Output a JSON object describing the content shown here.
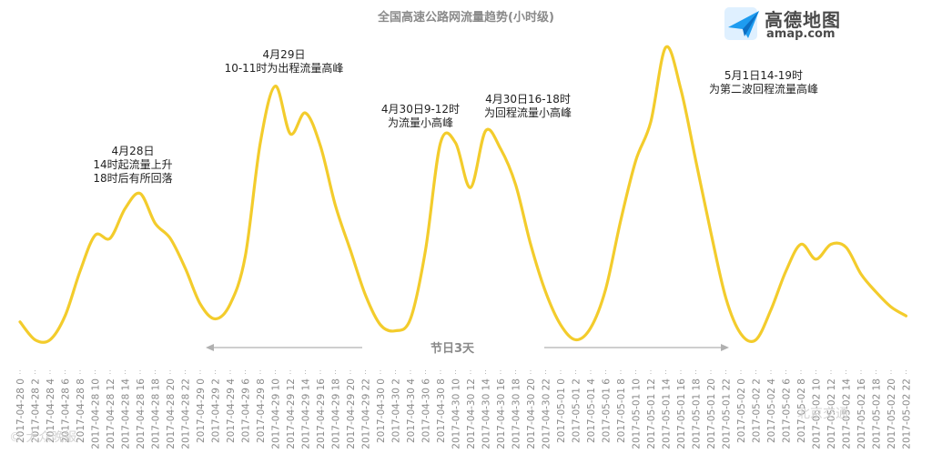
{
  "chart_data": {
    "type": "line",
    "title": "全国高速公路网流量趋势(小时级)",
    "color": "#f3cc2c",
    "x": [
      "2017-04-28 0",
      "2017-04-28 2",
      "2017-04-28 4",
      "2017-04-28 6",
      "2017-04-28 8",
      "2017-04-28 10",
      "2017-04-28 12",
      "2017-04-28 14",
      "2017-04-28 16",
      "2017-04-28 18",
      "2017-04-28 20",
      "2017-04-28 22",
      "2017-04-29 0",
      "2017-04-29 2",
      "2017-04-29 4",
      "2017-04-29 6",
      "2017-04-29 8",
      "2017-04-29 10",
      "2017-04-29 12",
      "2017-04-29 14",
      "2017-04-29 16",
      "2017-04-29 18",
      "2017-04-29 20",
      "2017-04-29 22",
      "2017-04-30 0",
      "2017-04-30 2",
      "2017-04-30 4",
      "2017-04-30 6",
      "2017-04-30 8",
      "2017-04-30 10",
      "2017-04-30 12",
      "2017-04-30 14",
      "2017-04-30 16",
      "2017-04-30 18",
      "2017-04-30 20",
      "2017-04-30 22",
      "2017-05-01 0",
      "2017-05-01 2",
      "2017-05-01 4",
      "2017-05-01 6",
      "2017-05-01 8",
      "2017-05-01 10",
      "2017-05-01 12",
      "2017-05-01 14",
      "2017-05-01 16",
      "2017-05-01 18",
      "2017-05-01 20",
      "2017-05-01 22",
      "2017-05-02 0",
      "2017-05-02 2",
      "2017-05-02 4",
      "2017-05-02 6",
      "2017-05-02 8",
      "2017-05-02 10",
      "2017-05-02 12",
      "2017-05-02 14",
      "2017-05-02 16",
      "2017-05-02 18",
      "2017-05-02 20",
      "2017-05-02 22"
    ],
    "series": [
      {
        "values": [
          0.08,
          0.02,
          0.02,
          0.1,
          0.25,
          0.37,
          0.36,
          0.46,
          0.51,
          0.41,
          0.36,
          0.26,
          0.14,
          0.09,
          0.14,
          0.3,
          0.68,
          0.87,
          0.71,
          0.78,
          0.67,
          0.47,
          0.32,
          0.17,
          0.07,
          0.05,
          0.09,
          0.32,
          0.68,
          0.68,
          0.53,
          0.72,
          0.66,
          0.54,
          0.34,
          0.18,
          0.07,
          0.02,
          0.06,
          0.19,
          0.42,
          0.62,
          0.75,
          1.0,
          0.86,
          0.62,
          0.38,
          0.16,
          0.04,
          0.02,
          0.12,
          0.25,
          0.34,
          0.29,
          0.34,
          0.33,
          0.24,
          0.18,
          0.13,
          0.1
        ]
      }
    ],
    "grid": false,
    "annotations": [
      {
        "id": "a1",
        "lines": [
          "4月28日",
          "14时起流量上升",
          "18时后有所回落"
        ]
      },
      {
        "id": "a2",
        "lines": [
          "4月29日",
          "10-11时为出程流量高峰"
        ]
      },
      {
        "id": "a3",
        "lines": [
          "4月30日9-12时",
          "为流量小高峰"
        ]
      },
      {
        "id": "a4",
        "lines": [
          "4月30日16-18时",
          "为回程流量小高峰"
        ]
      },
      {
        "id": "a5",
        "lines": [
          "5月1日14-19时",
          "为第二波回程流量高峰"
        ]
      }
    ],
    "holiday_label": "节日3天"
  },
  "logo": {
    "cn": "高德地图",
    "en": "amap.com"
  },
  "watermarks": {
    "left": "© 大众晚报",
    "right": "北京交通"
  }
}
